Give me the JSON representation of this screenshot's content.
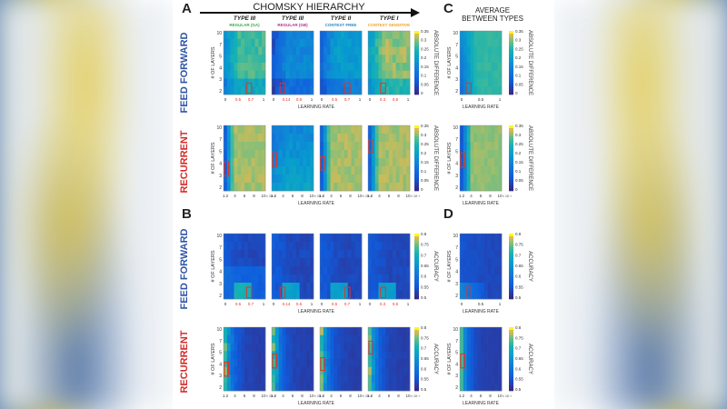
{
  "figure": {
    "hierarchy_title": "CHOMSKY HIERARCHY",
    "average_title_line1": "AVERAGE",
    "average_title_line2": "BETWEEN TYPES",
    "panel_letters": [
      "A",
      "B",
      "C",
      "D"
    ],
    "row_labels": {
      "feed_forward": "FEED FORWARD",
      "recurrent": "RECURRENT"
    },
    "columns": [
      {
        "type": "TYPE III",
        "sub": "REGULAR (GA)",
        "color": "#3aa845"
      },
      {
        "type": "TYPE III",
        "sub": "REGULAR (GB)",
        "color": "#b0338f"
      },
      {
        "type": "TYPE II",
        "sub": "CONTEXT FREE",
        "color": "#2a86c4"
      },
      {
        "type": "TYPE I",
        "sub": "CONTEXT SENSITIVE",
        "color": "#f0a020"
      }
    ],
    "colors": {
      "feed_forward": "#2f55a8",
      "recurrent": "#d62b2b",
      "highlight": "#e8321e"
    },
    "y_axis_label": "# OF LAYERS",
    "x_axis_label": "LEARNING RATE",
    "colorbar_labels": {
      "difference": "ABSOLUTE DIFFERENCE",
      "accuracy": "ACCURACY"
    }
  },
  "chart_data": [
    {
      "type": "heatmap",
      "panel": "A",
      "architecture": "feed forward",
      "metric": "ABSOLUTE DIFFERENCE",
      "xlabel": "LEARNING RATE",
      "ylabel": "# OF LAYERS",
      "y_ticks": [
        "10",
        "7",
        "5",
        "4",
        "3",
        "2"
      ],
      "x_ticks": [
        [
          "0",
          "0.5",
          "0.7",
          "1"
        ],
        [
          "0",
          "0.14",
          "0.5",
          "1"
        ],
        [
          "0",
          "0.5",
          "0.7",
          "1"
        ],
        [
          "0",
          "0.3",
          "0.5",
          "1"
        ]
      ],
      "colorbar": {
        "range": [
          0,
          0.35
        ],
        "ticks": [
          "0.35",
          "0.3",
          "0.25",
          "0.2",
          "0.15",
          "0.1",
          "0.05",
          "0"
        ]
      }
    },
    {
      "type": "heatmap",
      "panel": "A",
      "architecture": "recurrent",
      "metric": "ABSOLUTE DIFFERENCE",
      "xlabel": "LEARNING RATE",
      "ylabel": "# OF LAYERS",
      "y_ticks": [
        "10",
        "7",
        "5",
        "4",
        "3",
        "2"
      ],
      "x_ticks": [
        [
          "1.2",
          "4",
          "6",
          "8",
          "10"
        ],
        [
          "1.2",
          "4",
          "6",
          "8",
          "10"
        ],
        [
          "1.2",
          "4",
          "6",
          "8",
          "10"
        ],
        [
          "1.2",
          "4",
          "6",
          "8",
          "10"
        ]
      ],
      "x_exponent": "× 10⁻³",
      "colorbar": {
        "range": [
          0,
          0.35
        ],
        "ticks": [
          "0.35",
          "0.3",
          "0.25",
          "0.2",
          "0.15",
          "0.1",
          "0.05",
          "0"
        ]
      }
    },
    {
      "type": "heatmap",
      "panel": "B",
      "architecture": "feed forward",
      "metric": "ACCURACY",
      "xlabel": "LEARNING RATE",
      "ylabel": "# OF LAYERS",
      "y_ticks": [
        "10",
        "7",
        "5",
        "4",
        "3",
        "2"
      ],
      "x_ticks": [
        [
          "0",
          "0.5",
          "0.7",
          "1"
        ],
        [
          "0",
          "0.14",
          "0.5",
          "1"
        ],
        [
          "0",
          "0.5",
          "0.7",
          "1"
        ],
        [
          "0",
          "0.3",
          "0.5",
          "1"
        ]
      ],
      "colorbar": {
        "range": [
          0.5,
          0.8
        ],
        "ticks": [
          "0.8",
          "0.75",
          "0.7",
          "0.65",
          "0.6",
          "0.55",
          "0.5"
        ]
      }
    },
    {
      "type": "heatmap",
      "panel": "B",
      "architecture": "recurrent",
      "metric": "ACCURACY",
      "xlabel": "LEARNING RATE",
      "ylabel": "# OF LAYERS",
      "y_ticks": [
        "10",
        "7",
        "5",
        "4",
        "3",
        "2"
      ],
      "x_ticks": [
        [
          "1.2",
          "4",
          "6",
          "8",
          "10"
        ],
        [
          "1.2",
          "4",
          "6",
          "8",
          "10"
        ],
        [
          "1.2",
          "4",
          "6",
          "8",
          "10"
        ],
        [
          "1.2",
          "4",
          "6",
          "8",
          "10"
        ]
      ],
      "x_exponent": "× 10⁻³",
      "colorbar": {
        "range": [
          0.5,
          0.8
        ],
        "ticks": [
          "0.8",
          "0.75",
          "0.7",
          "0.65",
          "0.6",
          "0.55",
          "0.5"
        ]
      }
    },
    {
      "type": "heatmap",
      "panel": "C",
      "architecture": "feed forward",
      "metric": "ABSOLUTE DIFFERENCE",
      "y_ticks": [
        "10",
        "7",
        "5",
        "4",
        "3",
        "2"
      ],
      "x_ticks": [
        "0",
        "0.5",
        "1"
      ],
      "colorbar": {
        "range": [
          0,
          0.35
        ],
        "ticks": [
          "0.35",
          "0.3",
          "0.25",
          "0.2",
          "0.15",
          "0.1",
          "0.05",
          "0"
        ]
      }
    },
    {
      "type": "heatmap",
      "panel": "C",
      "architecture": "recurrent",
      "metric": "ABSOLUTE DIFFERENCE",
      "y_ticks": [
        "10",
        "7",
        "5",
        "4",
        "3",
        "2"
      ],
      "x_ticks": [
        "1.2",
        "4",
        "6",
        "8",
        "10"
      ],
      "colorbar": {
        "range": [
          0,
          0.35
        ],
        "ticks": [
          "0.35",
          "0.3",
          "0.25",
          "0.2",
          "0.15",
          "0.1",
          "0.05",
          "0"
        ]
      }
    },
    {
      "type": "heatmap",
      "panel": "D",
      "architecture": "feed forward",
      "metric": "ACCURACY",
      "y_ticks": [
        "10",
        "7",
        "5",
        "4",
        "3",
        "2"
      ],
      "x_ticks": [
        "0",
        "0.5",
        "1"
      ],
      "colorbar": {
        "range": [
          0.5,
          0.8
        ],
        "ticks": [
          "0.8",
          "0.75",
          "0.7",
          "0.65",
          "0.6",
          "0.55",
          "0.5"
        ]
      }
    },
    {
      "type": "heatmap",
      "panel": "D",
      "architecture": "recurrent",
      "metric": "ACCURACY",
      "y_ticks": [
        "10",
        "7",
        "5",
        "4",
        "3",
        "2"
      ],
      "x_ticks": [
        "1.2",
        "4",
        "6",
        "8",
        "10"
      ],
      "colorbar": {
        "range": [
          0.5,
          0.8
        ],
        "ticks": [
          "0.8",
          "0.75",
          "0.7",
          "0.65",
          "0.6",
          "0.55",
          "0.5"
        ]
      }
    }
  ]
}
